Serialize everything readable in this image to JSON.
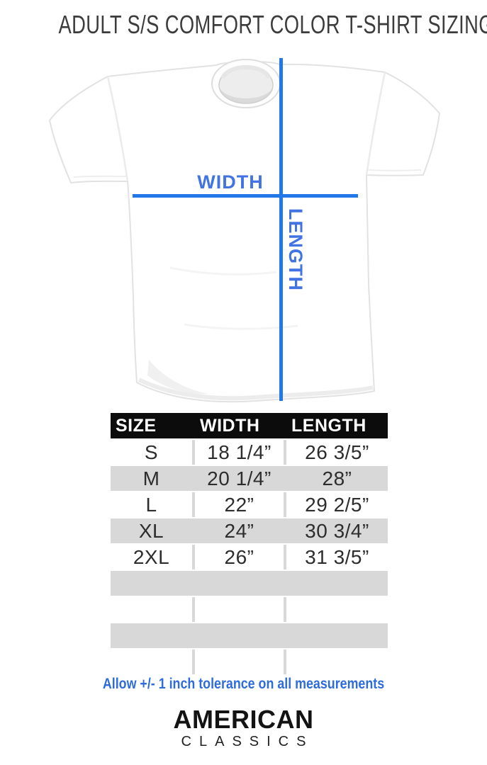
{
  "title": "ADULT S/S COMFORT COLOR T-SHIRT SIZING",
  "diagram": {
    "width_label": "WIDTH",
    "length_label": "LENGTH"
  },
  "table": {
    "headers": [
      "SIZE",
      "WIDTH",
      "LENGTH"
    ],
    "rows": [
      {
        "size": "S",
        "width": "18 1/4”",
        "length": "26 3/5”"
      },
      {
        "size": "M",
        "width": "20 1/4”",
        "length": "28”"
      },
      {
        "size": "L",
        "width": "22”",
        "length": "29 2/5”"
      },
      {
        "size": "XL",
        "width": "24”",
        "length": "30 3/4”"
      },
      {
        "size": "2XL",
        "width": "26”",
        "length": "31 3/5”"
      }
    ],
    "empty_row_count": 4
  },
  "tolerance_note": "Allow +/- 1 inch tolerance on all measurements",
  "brand": {
    "name_top": "AMERICAN",
    "name_bottom": "CLASSICS"
  },
  "colors": {
    "accent-line": "#2278e8",
    "accent-label": "#4173e2",
    "accent-note": "#2f6cdb",
    "header-bg": "#0c0c0c",
    "header-text": "#ffffff",
    "row-gray": "#d8d8d8",
    "table-text": "#2d2d2d",
    "title-text": "#3c3c3c",
    "brand-text": "#131313"
  }
}
